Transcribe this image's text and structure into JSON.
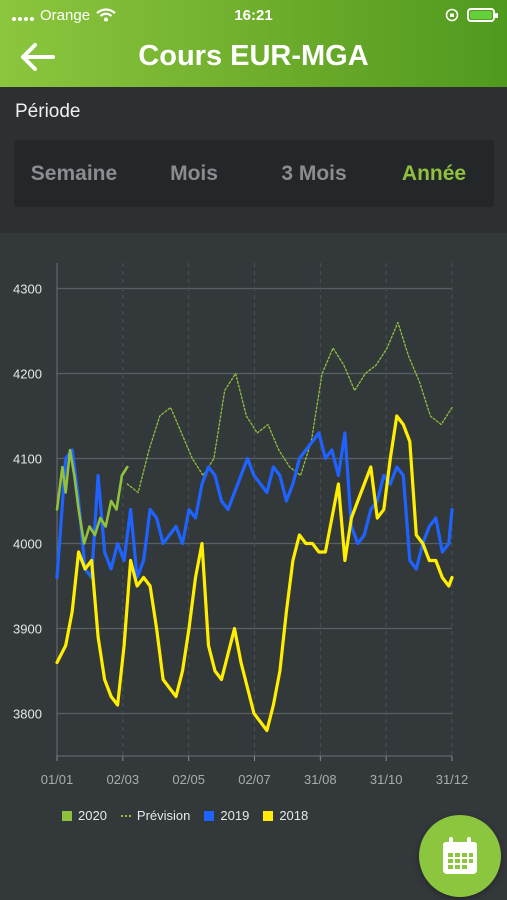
{
  "status_bar": {
    "carrier": "Orange",
    "time": "16:21"
  },
  "header": {
    "title": "Cours EUR-MGA",
    "back_icon": "arrow-left-icon"
  },
  "periode": {
    "label": "Période",
    "options": [
      "Semaine",
      "Mois",
      "3 Mois",
      "Année"
    ],
    "selected": "Année"
  },
  "colors": {
    "accent": "#8fc13c",
    "series_2020": "#8fc13c",
    "series_prevision": "#8fc13c",
    "series_2019": "#1f63ff",
    "series_2018": "#ffee00"
  },
  "chart_data": {
    "type": "line",
    "x_ticks": [
      "01/01",
      "02/03",
      "02/05",
      "02/07",
      "31/08",
      "31/10",
      "31/12"
    ],
    "y_ticks": [
      3800,
      3900,
      4000,
      4100,
      4200,
      4300
    ],
    "ylim": [
      3750,
      4330
    ],
    "grid": true,
    "legend_position": "bottom",
    "series": [
      {
        "name": "2020",
        "style": "solid",
        "x": [
          0,
          5,
          8,
          12,
          16,
          20,
          25,
          30,
          35,
          40,
          45,
          50,
          55,
          60,
          65
        ],
        "y": [
          4040,
          4090,
          4060,
          4110,
          4080,
          4040,
          4000,
          4020,
          4010,
          4030,
          4020,
          4050,
          4040,
          4080,
          4090
        ]
      },
      {
        "name": "Prévision",
        "style": "dotted",
        "x": [
          65,
          75,
          85,
          95,
          105,
          115,
          125,
          135,
          145,
          155,
          165,
          175,
          185,
          195,
          205,
          215,
          225,
          235,
          245,
          255,
          265,
          275,
          285,
          295,
          305,
          315,
          325,
          335,
          345,
          355,
          365
        ],
        "y": [
          4070,
          4060,
          4110,
          4150,
          4160,
          4130,
          4100,
          4080,
          4100,
          4180,
          4200,
          4150,
          4130,
          4140,
          4110,
          4090,
          4080,
          4120,
          4200,
          4230,
          4210,
          4180,
          4200,
          4210,
          4230,
          4260,
          4220,
          4190,
          4150,
          4140,
          4160
        ]
      },
      {
        "name": "2019",
        "style": "solid",
        "x": [
          0,
          8,
          14,
          20,
          26,
          32,
          38,
          44,
          50,
          56,
          62,
          68,
          74,
          80,
          86,
          92,
          98,
          104,
          110,
          116,
          122,
          128,
          134,
          140,
          146,
          152,
          158,
          164,
          170,
          176,
          182,
          188,
          194,
          200,
          206,
          212,
          218,
          224,
          230,
          236,
          242,
          248,
          254,
          260,
          266,
          272,
          278,
          284,
          290,
          296,
          302,
          308,
          314,
          320,
          326,
          332,
          338,
          344,
          350,
          356,
          362,
          365
        ],
        "y": [
          3960,
          4100,
          4110,
          4050,
          3970,
          3960,
          4080,
          3990,
          3970,
          4000,
          3980,
          4040,
          3960,
          3980,
          4040,
          4030,
          4000,
          4010,
          4020,
          4000,
          4040,
          4030,
          4070,
          4090,
          4080,
          4050,
          4040,
          4060,
          4080,
          4100,
          4080,
          4070,
          4060,
          4090,
          4080,
          4050,
          4070,
          4100,
          4110,
          4120,
          4130,
          4100,
          4110,
          4080,
          4130,
          4020,
          4000,
          4010,
          4040,
          4050,
          4080,
          4070,
          4090,
          4080,
          3980,
          3970,
          4000,
          4020,
          4030,
          3990,
          4000,
          4040
        ]
      },
      {
        "name": "2018",
        "style": "solid",
        "x": [
          0,
          8,
          14,
          20,
          26,
          32,
          38,
          44,
          50,
          56,
          62,
          68,
          74,
          80,
          86,
          92,
          98,
          104,
          110,
          116,
          122,
          128,
          134,
          140,
          146,
          152,
          158,
          164,
          170,
          176,
          182,
          188,
          194,
          200,
          206,
          212,
          218,
          224,
          230,
          236,
          242,
          248,
          254,
          260,
          266,
          272,
          278,
          284,
          290,
          296,
          302,
          308,
          314,
          320,
          326,
          332,
          338,
          344,
          350,
          356,
          362,
          365
        ],
        "y": [
          3860,
          3880,
          3920,
          3990,
          3970,
          3980,
          3890,
          3840,
          3820,
          3810,
          3880,
          3980,
          3950,
          3960,
          3950,
          3900,
          3840,
          3830,
          3820,
          3850,
          3900,
          3960,
          4000,
          3880,
          3850,
          3840,
          3870,
          3900,
          3860,
          3830,
          3800,
          3790,
          3780,
          3810,
          3850,
          3920,
          3980,
          4010,
          4000,
          4000,
          3990,
          3990,
          4030,
          4070,
          3980,
          4030,
          4050,
          4070,
          4090,
          4030,
          4040,
          4100,
          4150,
          4140,
          4120,
          4010,
          4000,
          3980,
          3980,
          3960,
          3950,
          3960
        ]
      }
    ]
  }
}
